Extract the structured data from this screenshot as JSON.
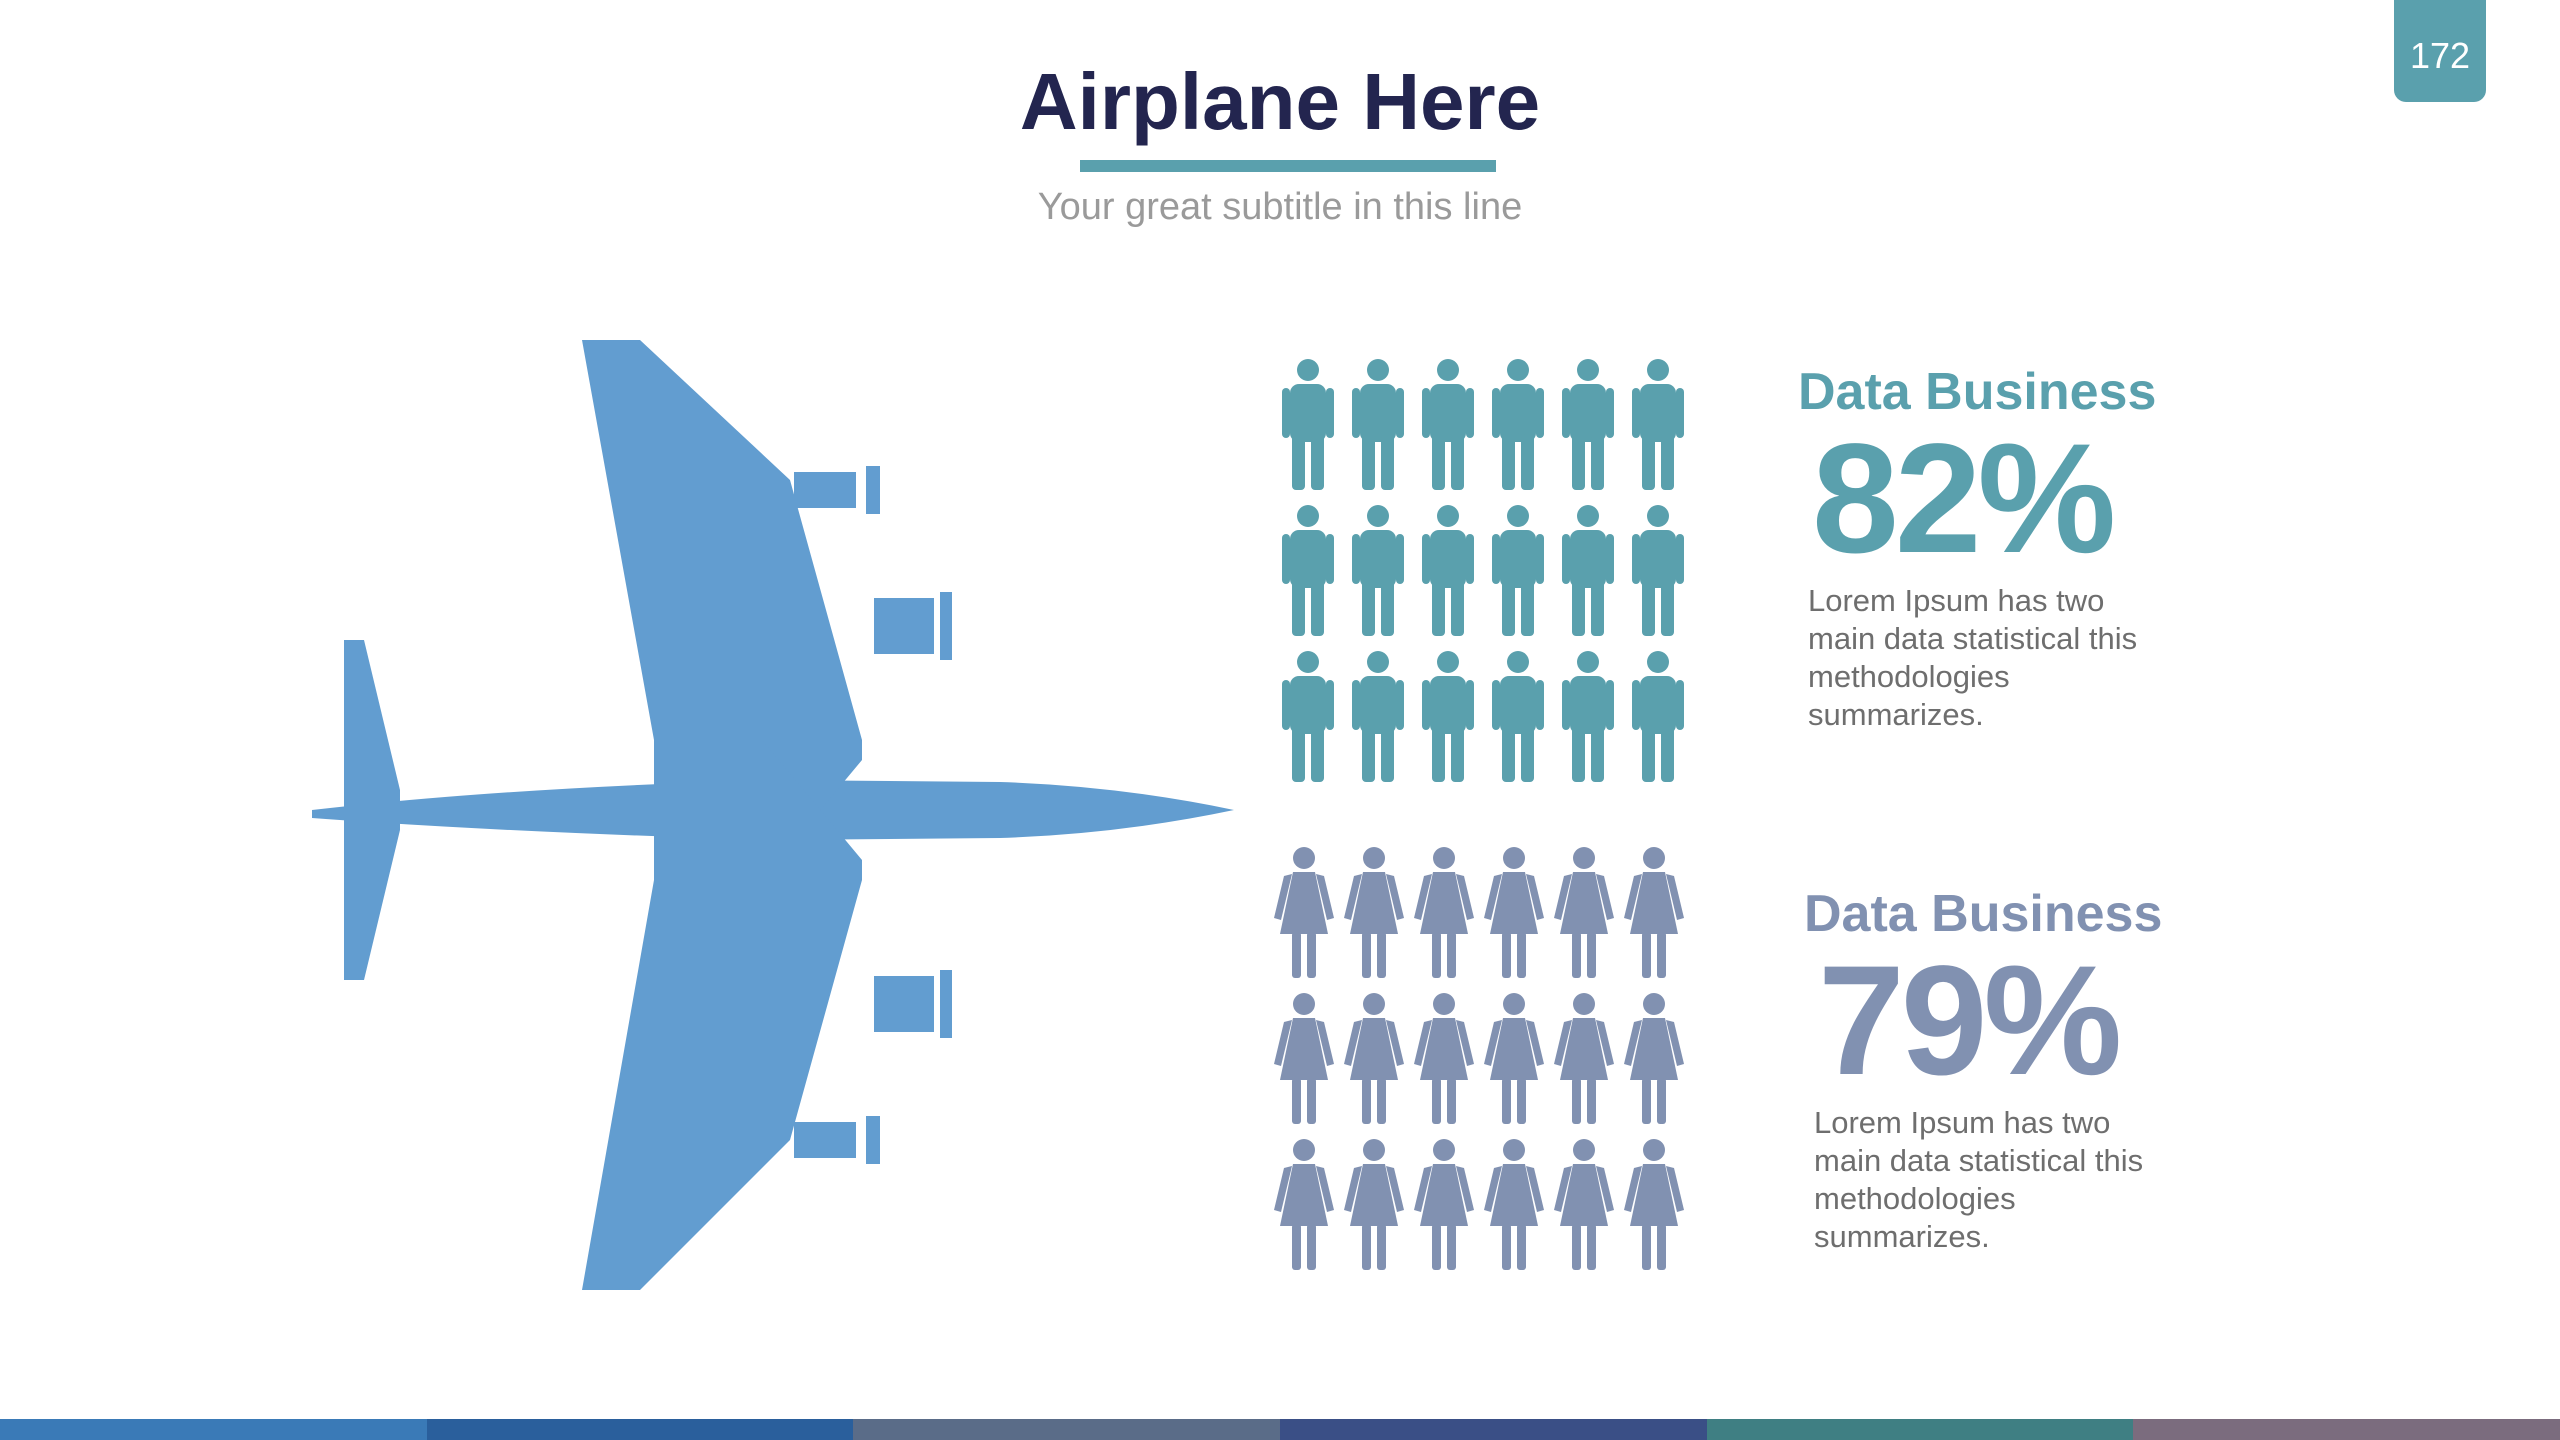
{
  "page": {
    "number": "172",
    "title": "Airplane Here",
    "subtitle": "Your great subtitle in this line"
  },
  "colors": {
    "title": "#23254f",
    "accent": "#5aa0ad",
    "airplane": "#629dd0",
    "male_icons": "#5aa0ad",
    "female_icons": "#8191b1"
  },
  "icons": {
    "airplane": "airplane-icon",
    "male": "male-person-icon",
    "female": "female-person-icon"
  },
  "stats": [
    {
      "heading": "Data Business",
      "value": "82%",
      "description": "Lorem Ipsum has two main data statistical this methodologies summarizes.",
      "color": "#5aa0ad",
      "icon_count": 18
    },
    {
      "heading": "Data Business",
      "value": "79%",
      "description": "Lorem Ipsum has two main data statistical this methodologies summarizes.",
      "color": "#8191b1",
      "icon_count": 18
    }
  ],
  "footer_colors": [
    "#3a7ab7",
    "#2a5f9c",
    "#5a6c88",
    "#3a4f86",
    "#3f7f83",
    "#7b6c7e"
  ]
}
